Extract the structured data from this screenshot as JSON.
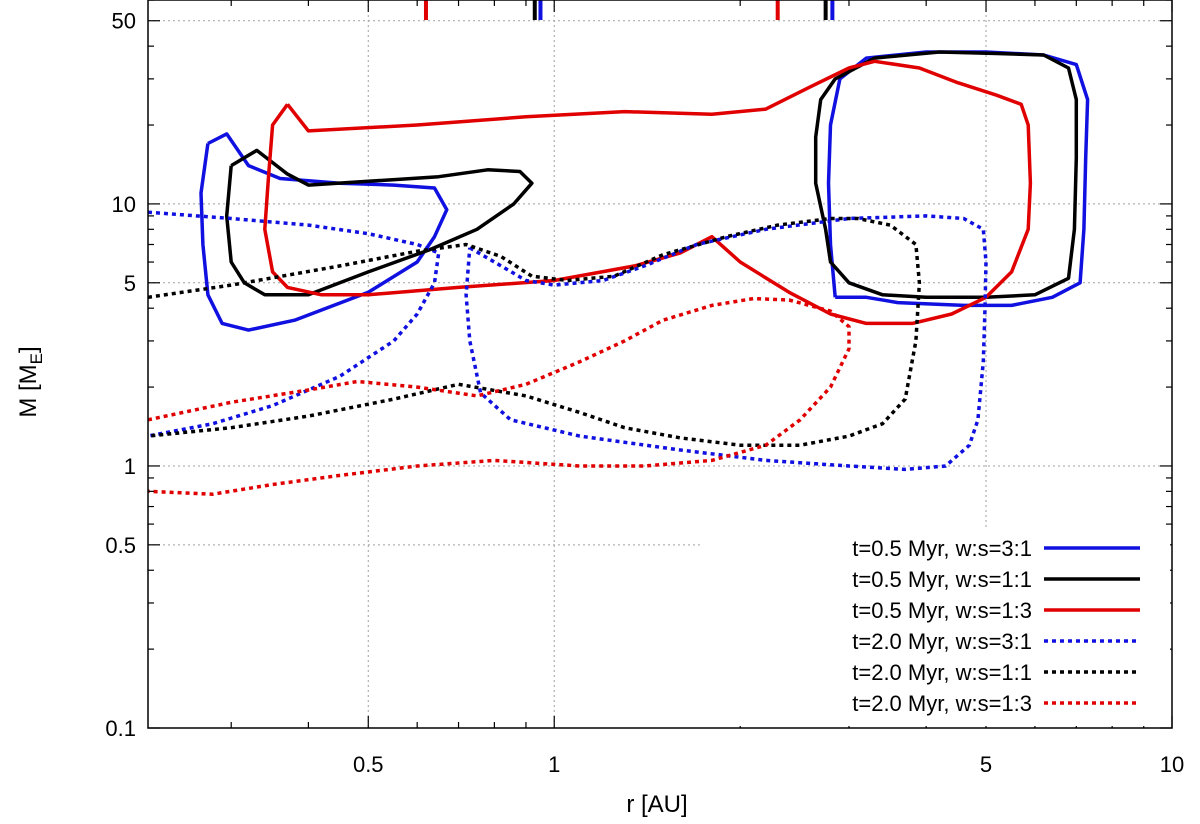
{
  "chart_data": {
    "type": "line",
    "title": "",
    "xlabel": "r [AU]",
    "ylabel_main": "M [M",
    "ylabel_sub": "E",
    "ylabel_close": "]",
    "xscale": "log",
    "yscale": "log",
    "xlim": [
      0.22,
      10
    ],
    "ylim": [
      0.1,
      60
    ],
    "grid": true,
    "legend_position": "bottom-right",
    "x_ticks": [
      {
        "value": 0.5,
        "label": "0.5"
      },
      {
        "value": 1,
        "label": "1"
      },
      {
        "value": 5,
        "label": "5"
      },
      {
        "value": 10,
        "label": "10"
      }
    ],
    "y_ticks": [
      {
        "value": 0.1,
        "label": "0.1"
      },
      {
        "value": 0.5,
        "label": "0.5"
      },
      {
        "value": 1,
        "label": "1"
      },
      {
        "value": 5,
        "label": "5"
      },
      {
        "value": 10,
        "label": "10"
      },
      {
        "value": 50,
        "label": "50"
      }
    ],
    "top_markers": [
      {
        "x": 0.62,
        "color": "#e00000"
      },
      {
        "x": 0.93,
        "color": "#000000"
      },
      {
        "x": 0.95,
        "color": "#1010e0"
      },
      {
        "x": 2.3,
        "color": "#e00000"
      },
      {
        "x": 2.75,
        "color": "#000000"
      },
      {
        "x": 2.82,
        "color": "#1010e0"
      }
    ],
    "series": [
      {
        "name": "t=0.5 Myr, w:s=3:1",
        "color": "#1010e0",
        "dash": "solid",
        "segments": [
          [
            [
              0.275,
              17
            ],
            [
              0.295,
              18.5
            ],
            [
              0.32,
              14
            ],
            [
              0.36,
              12.5
            ],
            [
              0.45,
              12
            ],
            [
              0.55,
              11.8
            ],
            [
              0.64,
              11.5
            ],
            [
              0.67,
              9.5
            ],
            [
              0.64,
              7.5
            ],
            [
              0.6,
              6
            ],
            [
              0.5,
              4.6
            ],
            [
              0.38,
              3.6
            ],
            [
              0.32,
              3.3
            ],
            [
              0.29,
              3.5
            ],
            [
              0.275,
              4.5
            ],
            [
              0.27,
              7
            ],
            [
              0.268,
              11
            ],
            [
              0.275,
              17
            ]
          ],
          [
            [
              2.85,
              4.4
            ],
            [
              2.8,
              7
            ],
            [
              2.78,
              12
            ],
            [
              2.8,
              20
            ],
            [
              2.9,
              30
            ],
            [
              3.2,
              36
            ],
            [
              4,
              38
            ],
            [
              5,
              38
            ],
            [
              6.2,
              37
            ],
            [
              7,
              34
            ],
            [
              7.3,
              25
            ],
            [
              7.25,
              15
            ],
            [
              7.2,
              8
            ],
            [
              7.1,
              5
            ],
            [
              6.4,
              4.4
            ],
            [
              5.5,
              4.1
            ],
            [
              4.6,
              4.1
            ],
            [
              3.6,
              4.2
            ],
            [
              3.2,
              4.4
            ],
            [
              2.85,
              4.4
            ]
          ]
        ]
      },
      {
        "name": "t=0.5 Myr, w:s=1:1",
        "color": "#000000",
        "dash": "solid",
        "segments": [
          [
            [
              0.3,
              14
            ],
            [
              0.33,
              16
            ],
            [
              0.37,
              13
            ],
            [
              0.4,
              11.8
            ],
            [
              0.5,
              12.2
            ],
            [
              0.65,
              12.7
            ],
            [
              0.78,
              13.5
            ],
            [
              0.88,
              13.3
            ],
            [
              0.92,
              12
            ],
            [
              0.86,
              10
            ],
            [
              0.75,
              8
            ],
            [
              0.63,
              6.7
            ],
            [
              0.5,
              5.5
            ],
            [
              0.4,
              4.5
            ],
            [
              0.34,
              4.5
            ],
            [
              0.315,
              5
            ],
            [
              0.3,
              6
            ],
            [
              0.295,
              9
            ],
            [
              0.3,
              14
            ]
          ],
          [
            [
              2.75,
              8
            ],
            [
              2.65,
              12
            ],
            [
              2.65,
              18
            ],
            [
              2.7,
              25
            ],
            [
              2.85,
              30
            ],
            [
              3.3,
              36
            ],
            [
              4.2,
              38
            ],
            [
              5.2,
              37.5
            ],
            [
              6.2,
              37
            ],
            [
              6.8,
              33
            ],
            [
              7,
              25
            ],
            [
              7,
              15
            ],
            [
              6.95,
              8
            ],
            [
              6.8,
              5.2
            ],
            [
              6,
              4.5
            ],
            [
              5,
              4.4
            ],
            [
              4,
              4.4
            ],
            [
              3.4,
              4.5
            ],
            [
              3,
              5
            ],
            [
              2.8,
              6
            ],
            [
              2.75,
              8
            ]
          ]
        ]
      },
      {
        "name": "t=0.5 Myr, w:s=1:3",
        "color": "#e00000",
        "dash": "solid",
        "segments": [
          [
            [
              0.37,
              24
            ],
            [
              0.4,
              19
            ],
            [
              0.6,
              20
            ],
            [
              0.9,
              21.5
            ],
            [
              1.3,
              22.5
            ],
            [
              1.8,
              22
            ],
            [
              2.2,
              23
            ],
            [
              2.6,
              28
            ],
            [
              3,
              33
            ],
            [
              3.3,
              35
            ],
            [
              3.9,
              33
            ],
            [
              4.5,
              29
            ],
            [
              5.2,
              26
            ],
            [
              5.7,
              24
            ],
            [
              5.85,
              20
            ],
            [
              5.9,
              12
            ],
            [
              5.85,
              8
            ],
            [
              5.5,
              5.5
            ],
            [
              5,
              4.4
            ],
            [
              4.4,
              3.8
            ],
            [
              3.8,
              3.5
            ],
            [
              3.2,
              3.5
            ],
            [
              2.8,
              3.8
            ],
            [
              2.4,
              4.6
            ],
            [
              2,
              6
            ],
            [
              1.8,
              7.5
            ],
            [
              1.6,
              6.5
            ],
            [
              1.35,
              5.8
            ],
            [
              1,
              5.1
            ],
            [
              0.7,
              4.8
            ],
            [
              0.5,
              4.5
            ],
            [
              0.42,
              4.5
            ],
            [
              0.37,
              4.8
            ],
            [
              0.35,
              5.5
            ],
            [
              0.34,
              8
            ],
            [
              0.345,
              13
            ],
            [
              0.35,
              20
            ],
            [
              0.37,
              24
            ]
          ]
        ]
      },
      {
        "name": "t=2.0 Myr, w:s=3:1",
        "color": "#1010e0",
        "dash": "dotted",
        "segments": [
          [
            [
              0.22,
              9.3
            ],
            [
              0.3,
              8.8
            ],
            [
              0.4,
              8.3
            ],
            [
              0.5,
              7.7
            ],
            [
              0.6,
              7
            ],
            [
              0.65,
              6.5
            ],
            [
              0.64,
              5
            ],
            [
              0.6,
              3.8
            ],
            [
              0.55,
              3
            ],
            [
              0.45,
              2.2
            ],
            [
              0.35,
              1.7
            ],
            [
              0.28,
              1.45
            ],
            [
              0.22,
              1.3
            ]
          ],
          [
            [
              0.73,
              6.8
            ],
            [
              0.8,
              6
            ],
            [
              0.9,
              5.1
            ],
            [
              1,
              4.9
            ],
            [
              1.2,
              5.1
            ],
            [
              1.4,
              5.8
            ],
            [
              1.7,
              7
            ],
            [
              2.2,
              8
            ],
            [
              3,
              8.8
            ],
            [
              4,
              9
            ],
            [
              4.6,
              8.8
            ],
            [
              4.95,
              8
            ],
            [
              5,
              6
            ],
            [
              4.98,
              4
            ],
            [
              4.95,
              2.5
            ],
            [
              4.85,
              1.5
            ],
            [
              4.7,
              1.2
            ],
            [
              4.3,
              1
            ],
            [
              3.7,
              0.97
            ],
            [
              3,
              1
            ],
            [
              2.2,
              1.05
            ],
            [
              1.6,
              1.15
            ],
            [
              1.1,
              1.3
            ],
            [
              0.85,
              1.5
            ],
            [
              0.76,
              1.9
            ],
            [
              0.73,
              3
            ],
            [
              0.72,
              4.5
            ],
            [
              0.73,
              6.8
            ]
          ]
        ]
      },
      {
        "name": "t=2.0 Myr, w:s=1:1",
        "color": "#000000",
        "dash": "dotted",
        "segments": [
          [
            [
              0.22,
              4.4
            ],
            [
              0.3,
              4.9
            ],
            [
              0.45,
              5.8
            ],
            [
              0.6,
              6.6
            ],
            [
              0.72,
              7
            ],
            [
              0.82,
              6.3
            ],
            [
              0.92,
              5.3
            ],
            [
              1.05,
              5.1
            ],
            [
              1.25,
              5.3
            ],
            [
              1.5,
              6.4
            ],
            [
              1.9,
              7.5
            ],
            [
              2.3,
              8.3
            ],
            [
              2.8,
              8.8
            ],
            [
              3.1,
              8.8
            ],
            [
              3.5,
              8.3
            ],
            [
              3.85,
              7
            ],
            [
              3.9,
              5
            ],
            [
              3.85,
              3
            ],
            [
              3.7,
              1.8
            ],
            [
              3.4,
              1.45
            ],
            [
              3,
              1.3
            ],
            [
              2.5,
              1.2
            ],
            [
              2,
              1.2
            ],
            [
              1.6,
              1.28
            ],
            [
              1.3,
              1.4
            ],
            [
              1.1,
              1.6
            ],
            [
              0.9,
              1.85
            ],
            [
              0.7,
              2.05
            ],
            [
              0.55,
              1.8
            ],
            [
              0.4,
              1.55
            ],
            [
              0.3,
              1.4
            ],
            [
              0.22,
              1.3
            ]
          ]
        ]
      },
      {
        "name": "t=2.0 Myr, w:s=1:3",
        "color": "#e00000",
        "dash": "dotted",
        "segments": [
          [
            [
              0.22,
              1.5
            ],
            [
              0.3,
              1.75
            ],
            [
              0.4,
              1.95
            ],
            [
              0.48,
              2.1
            ],
            [
              0.6,
              2
            ],
            [
              0.75,
              1.85
            ],
            [
              0.9,
              2.05
            ],
            [
              1.1,
              2.5
            ],
            [
              1.3,
              3
            ],
            [
              1.5,
              3.6
            ],
            [
              1.8,
              4.1
            ],
            [
              2.1,
              4.35
            ],
            [
              2.4,
              4.3
            ],
            [
              2.8,
              3.9
            ],
            [
              3,
              3.4
            ],
            [
              3,
              2.8
            ],
            [
              2.8,
              2
            ],
            [
              2.5,
              1.5
            ],
            [
              2.2,
              1.2
            ],
            [
              1.8,
              1.05
            ],
            [
              1.4,
              1
            ],
            [
              1.1,
              1
            ],
            [
              0.8,
              1.05
            ],
            [
              0.6,
              1
            ],
            [
              0.45,
              0.92
            ],
            [
              0.35,
              0.85
            ],
            [
              0.28,
              0.78
            ],
            [
              0.22,
              0.8
            ]
          ]
        ]
      }
    ]
  }
}
